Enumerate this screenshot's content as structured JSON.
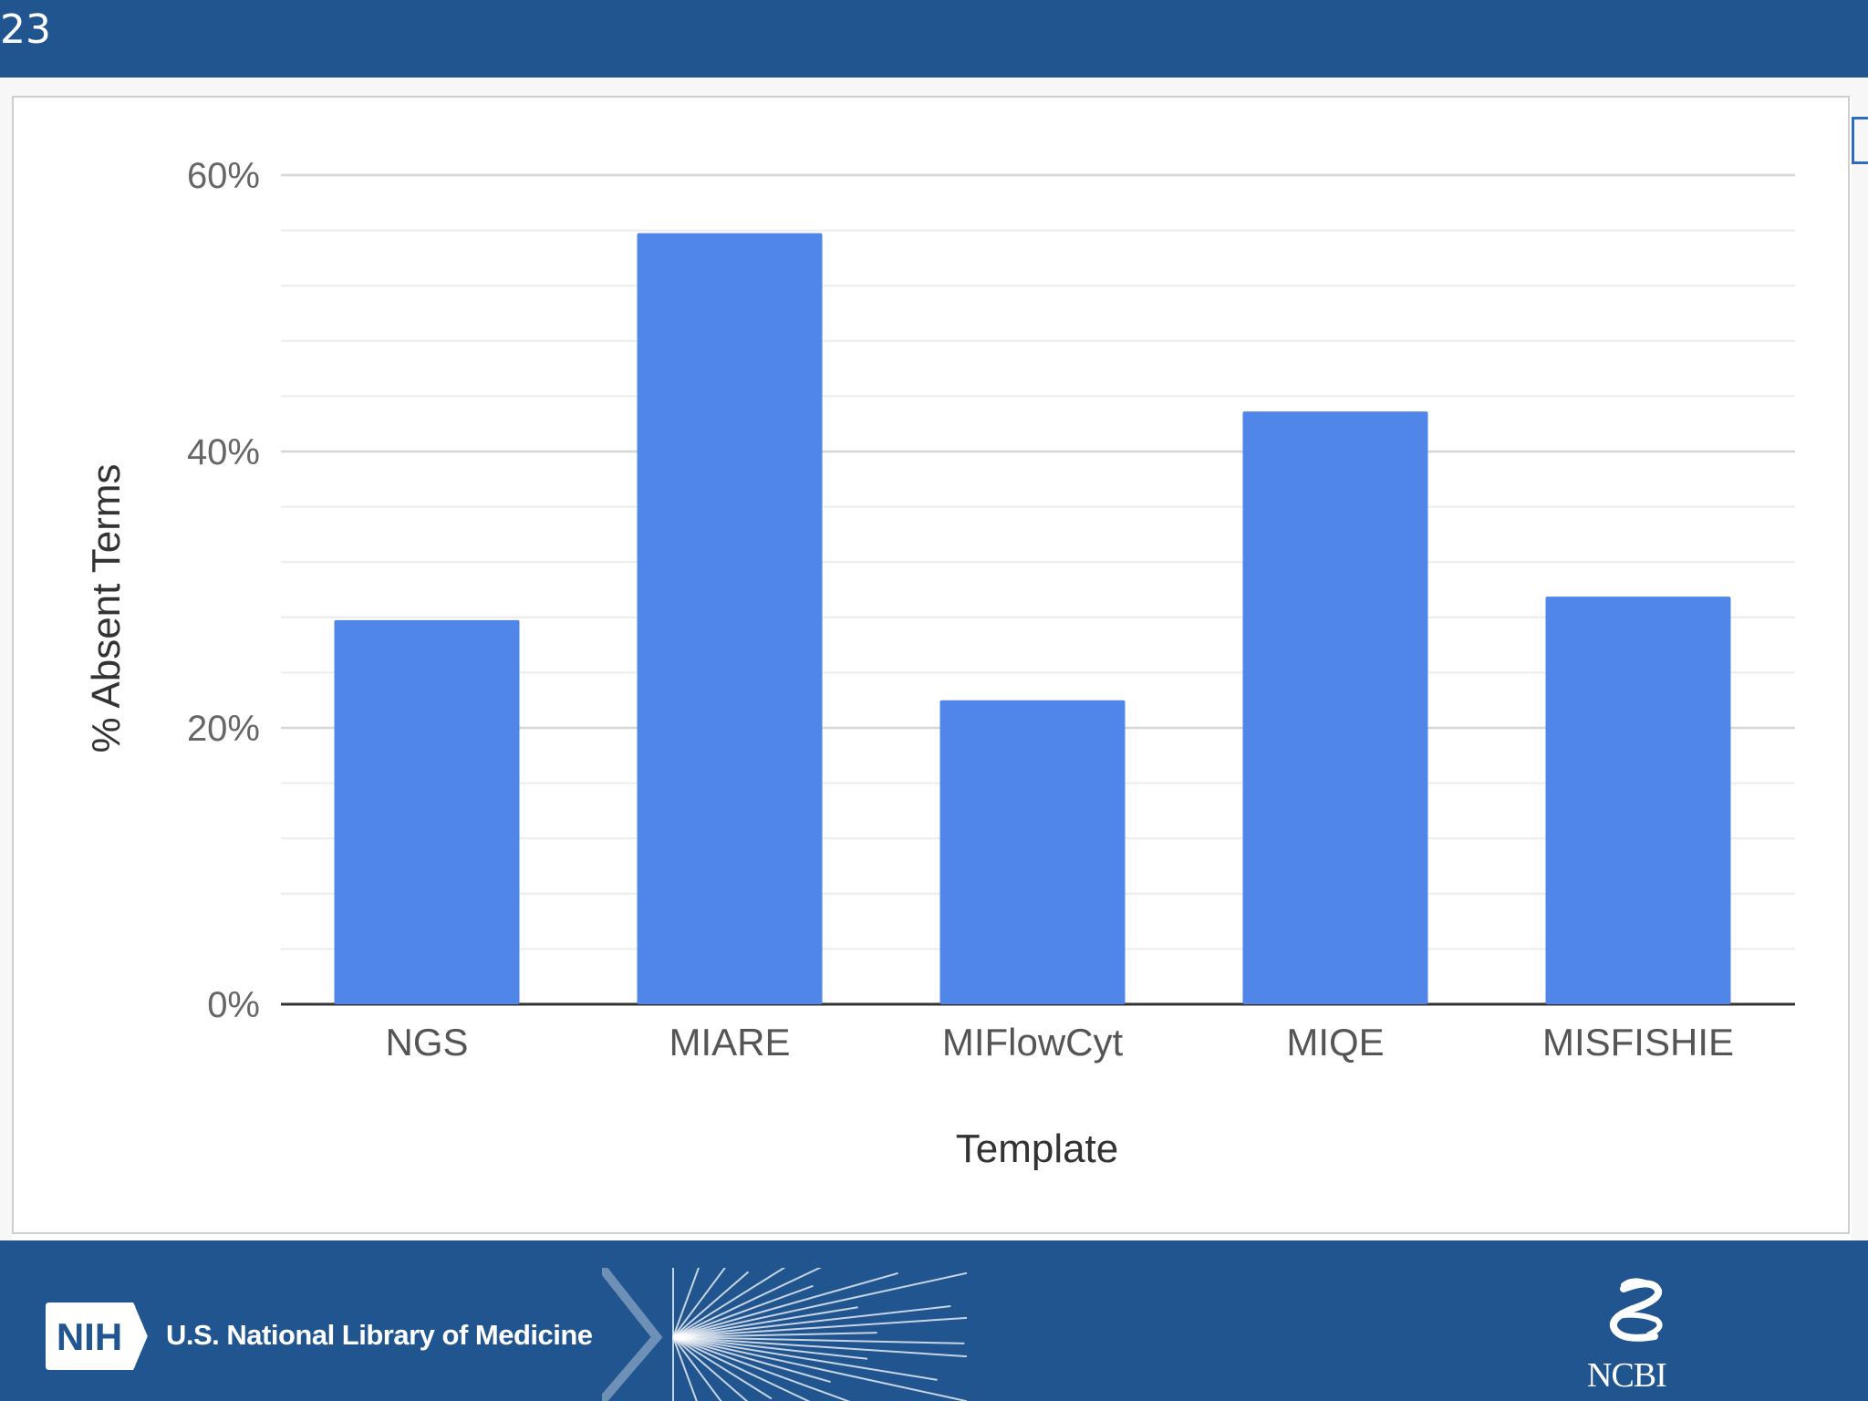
{
  "slide": {
    "number": "23"
  },
  "footer": {
    "nih_label": "NIH",
    "nlm_label": "U.S. National Library of Medicine",
    "ncbi_label": "NCBI"
  },
  "colors": {
    "header_bg": "#215590",
    "bar": "#4f86e8",
    "grid": "#e3e3e3",
    "axis": "#333333"
  },
  "icons": [
    "nih-logo-icon",
    "starburst-icon",
    "ncbi-helix-icon"
  ],
  "chart_data": {
    "type": "bar",
    "categories": [
      "NGS",
      "MIARE",
      "MIFlowCyt",
      "MIQE",
      "MISFISHIE"
    ],
    "values": [
      27.8,
      55.8,
      22,
      42.9,
      29.5
    ],
    "xlabel": "Template",
    "ylabel": "% Absent Terms",
    "ylim": [
      0,
      60
    ],
    "yticks": [
      "0%",
      "20%",
      "40%",
      "60%"
    ],
    "ytick_values": [
      0,
      20,
      40,
      60
    ],
    "minor_gridlines": true,
    "legend": "none"
  }
}
